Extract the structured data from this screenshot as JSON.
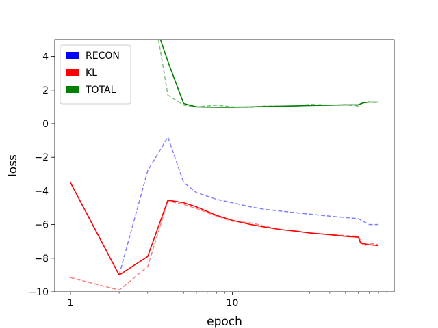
{
  "chart_data": {
    "type": "line",
    "title": "",
    "xlabel": "epoch",
    "ylabel": "loss",
    "xscale": "log",
    "xlim": [
      0.8,
      100
    ],
    "ylim": [
      -10,
      5
    ],
    "xticks": [
      1,
      10
    ],
    "xtick_labels": [
      "1",
      "10"
    ],
    "yticks": [
      -10,
      -8,
      -6,
      -4,
      -2,
      0,
      2,
      4
    ],
    "ytick_labels": [
      "−10",
      "−8",
      "−6",
      "−4",
      "−2",
      "0",
      "2",
      "4"
    ],
    "grid": false,
    "legend_position": "top-left",
    "legend": [
      {
        "label": "RECON",
        "color": "#0000ff"
      },
      {
        "label": "KL",
        "color": "#ff0000"
      },
      {
        "label": "TOTAL",
        "color": "#008000"
      }
    ],
    "series": [
      {
        "group": "RECON",
        "style": "dashed",
        "color": "#0000ff",
        "x": [
          1,
          2,
          3,
          4,
          5,
          6,
          8,
          10,
          13,
          16,
          20,
          25,
          30,
          40,
          50,
          60,
          70,
          80
        ],
        "y": [
          -3.5,
          -9.0,
          -2.8,
          -0.8,
          -3.5,
          -4.1,
          -4.5,
          -4.7,
          -4.95,
          -5.1,
          -5.2,
          -5.3,
          -5.38,
          -5.5,
          -5.58,
          -5.65,
          -6.0,
          -6.0
        ]
      },
      {
        "group": "KL",
        "style": "solid",
        "color": "#ff0000",
        "x": [
          1,
          2,
          3,
          4,
          5,
          6,
          8,
          10,
          13,
          16,
          20,
          25,
          30,
          40,
          50,
          60,
          62,
          70,
          80
        ],
        "y": [
          -3.5,
          -9.0,
          -7.9,
          -4.55,
          -4.7,
          -4.95,
          -5.45,
          -5.75,
          -6.0,
          -6.15,
          -6.3,
          -6.4,
          -6.5,
          -6.6,
          -6.7,
          -6.75,
          -7.1,
          -7.2,
          -7.25
        ]
      },
      {
        "group": "KL",
        "style": "dashed",
        "color": "#ff0000",
        "x": [
          1,
          2,
          3,
          4,
          5,
          6,
          8,
          10,
          13,
          16,
          20,
          25,
          30,
          40,
          50,
          60,
          65,
          70,
          80
        ],
        "y": [
          -9.15,
          -9.9,
          -8.5,
          -4.6,
          -4.8,
          -5.05,
          -5.5,
          -5.8,
          -5.9,
          -6.1,
          -6.3,
          -6.4,
          -6.5,
          -6.6,
          -6.65,
          -6.7,
          -7.3,
          -7.1,
          -7.2
        ]
      },
      {
        "group": "TOTAL",
        "style": "solid",
        "color": "#008000",
        "x": [
          3.6,
          4,
          5,
          6,
          8,
          10,
          13,
          16,
          20,
          25,
          30,
          40,
          50,
          60,
          65,
          70,
          80
        ],
        "y": [
          5.0,
          3.7,
          1.2,
          1.0,
          0.98,
          0.98,
          1.0,
          1.02,
          1.04,
          1.06,
          1.08,
          1.1,
          1.12,
          1.12,
          1.25,
          1.28,
          1.28
        ]
      },
      {
        "group": "TOTAL",
        "style": "dashed",
        "color": "#008000",
        "x": [
          3.5,
          4,
          5,
          6,
          8,
          10,
          13,
          16,
          20,
          25,
          30,
          40,
          50,
          60,
          62,
          70,
          80
        ],
        "y": [
          5.0,
          1.7,
          1.1,
          1.0,
          1.1,
          1.0,
          0.98,
          1.05,
          1.05,
          1.05,
          1.15,
          1.1,
          1.12,
          1.05,
          1.2,
          1.3,
          1.25
        ]
      }
    ]
  }
}
